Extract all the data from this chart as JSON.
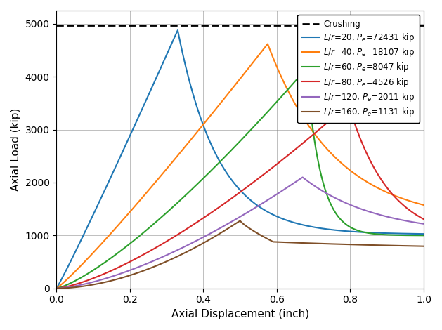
{
  "xlabel": "Axial Displacement (inch)",
  "ylabel": "Axial Load (kip)",
  "xlim": [
    0.0,
    1.0
  ],
  "ylim": [
    0,
    5250
  ],
  "yticks": [
    0,
    1000,
    2000,
    3000,
    4000,
    5000
  ],
  "xticks": [
    0.0,
    0.2,
    0.4,
    0.6,
    0.8,
    1.0
  ],
  "crushing_load": 4970,
  "curves": [
    {
      "label": "$L/r$=20, $P_e$=72431 kip",
      "color": "#1f77b4"
    },
    {
      "label": "$L/r$=40, $P_e$=18107 kip",
      "color": "#ff7f0e"
    },
    {
      "label": "$L/r$=60, $P_e$=8047 kip",
      "color": "#2ca02c"
    },
    {
      "label": "$L/r$=80, $P_e$=4526 kip",
      "color": "#d62728"
    },
    {
      "label": "$L/r$=120, $P_e$=2011 kip",
      "color": "#9467bd"
    },
    {
      "label": "$L/r$=160, $P_e$=1131 kip",
      "color": "#7f4f28"
    }
  ]
}
